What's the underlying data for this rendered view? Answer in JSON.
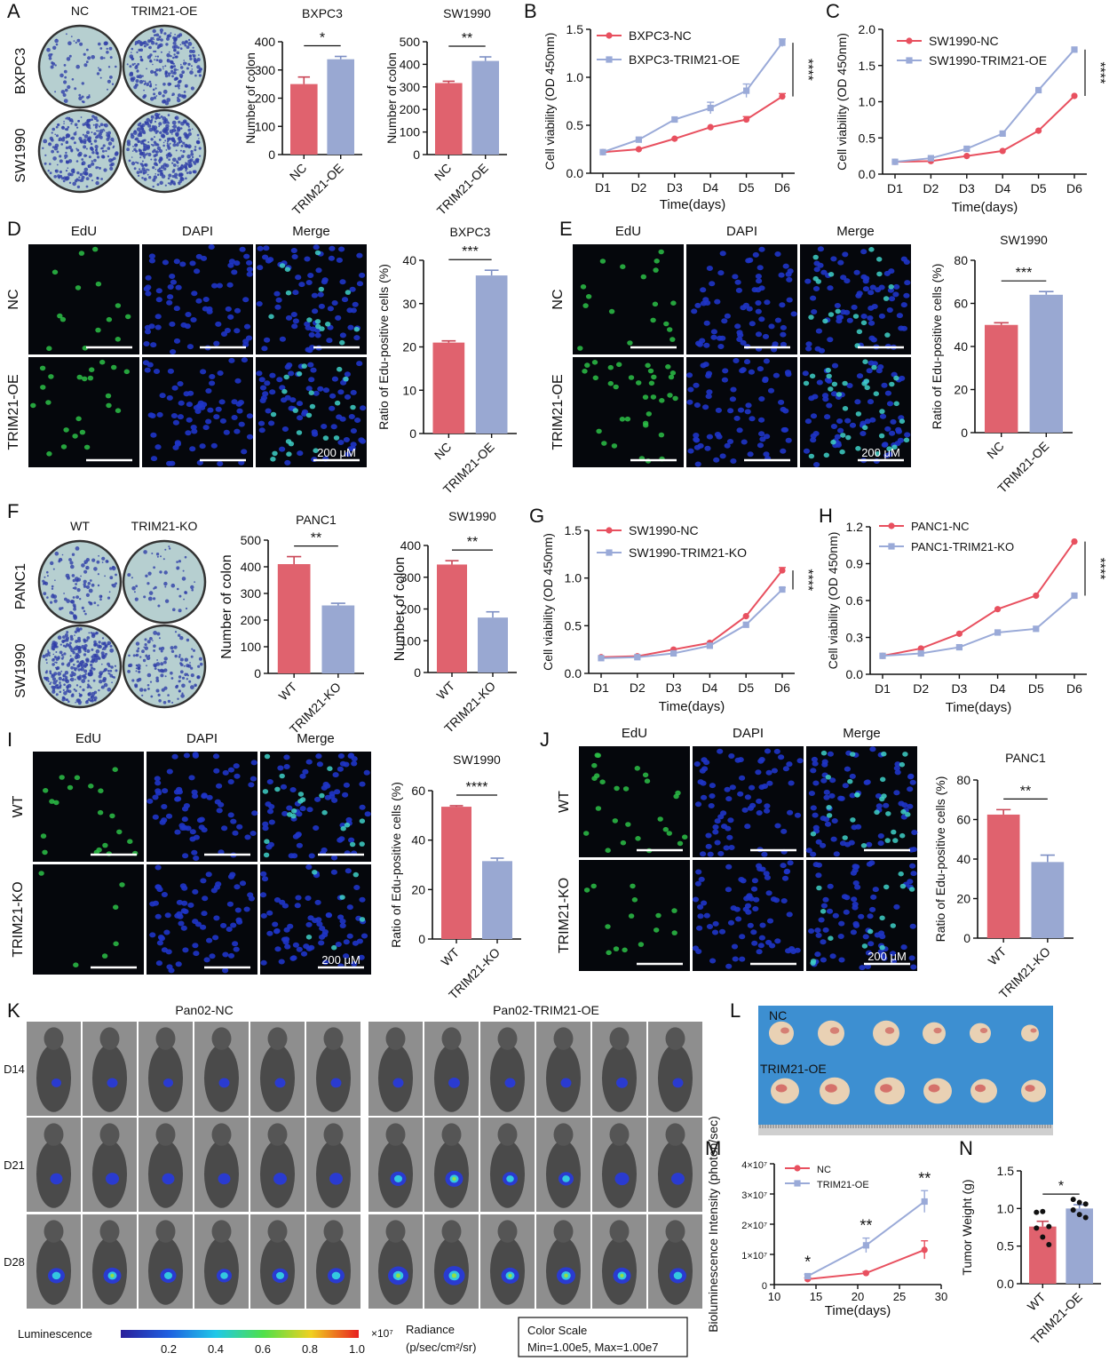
{
  "panel_letters": {
    "A": "A",
    "B": "B",
    "C": "C",
    "D": "D",
    "E": "E",
    "F": "F",
    "G": "G",
    "H": "H",
    "I": "I",
    "J": "J",
    "K": "K",
    "L": "L",
    "M": "M",
    "N": "N"
  },
  "colors": {
    "red": "#e0626e",
    "blue": "#99a8d2",
    "red_line": "#e8505f",
    "blue_line": "#9aaad8",
    "dish_fill": "#b6cfd0",
    "dish_dots": "#2f3fa8",
    "fluor_bg": "#05070c",
    "edu": "#2dbf48",
    "dapi": "#1f35c8",
    "mouse_bg": "#8e8e8e",
    "tray": "#3d8fd1",
    "tumor": "#e9d1b4"
  },
  "colony_A": {
    "col_labels": [
      "NC",
      "TRIM21-OE"
    ],
    "row_labels": [
      "BXPC3",
      "SW1990"
    ]
  },
  "colony_F": {
    "col_labels": [
      "WT",
      "TRIM21-KO"
    ],
    "row_labels": [
      "PANC1",
      "SW1990"
    ]
  },
  "fluor_D": {
    "col_labels": [
      "EdU",
      "DAPI",
      "Merge"
    ],
    "row_labels": [
      "NC",
      "TRIM21-OE"
    ],
    "scale": "200 μM"
  },
  "fluor_E": {
    "col_labels": [
      "EdU",
      "DAPI",
      "Merge"
    ],
    "row_labels": [
      "NC",
      "TRIM21-OE"
    ],
    "scale": "200 μM"
  },
  "fluor_I": {
    "col_labels": [
      "EdU",
      "DAPI",
      "Merge"
    ],
    "row_labels": [
      "WT",
      "TRIM21-KO"
    ],
    "scale": "200 μM"
  },
  "fluor_J": {
    "col_labels": [
      "EdU",
      "DAPI",
      "Merge"
    ],
    "row_labels": [
      "WT",
      "TRIM21-KO"
    ],
    "scale": "200 μM"
  },
  "imaging_K": {
    "group_labels": [
      "Pan02-NC",
      "Pan02-TRIM21-OE"
    ],
    "row_labels": [
      "D14",
      "D21",
      "D28"
    ],
    "lum_label": "Luminescence",
    "lum_ticks": [
      "0.2",
      "0.4",
      "0.6",
      "0.8",
      "1.0"
    ],
    "lum_exp": "×10⁷",
    "radiance_1": "Radiance",
    "radiance_2": "(p/sec/cm²/sr)",
    "cs_1": "Color Scale",
    "cs_2": "Min=1.00e5, Max=1.00e7"
  },
  "photo_L": {
    "label_nc": "NC",
    "label_oe": "TRIM21-OE"
  },
  "chart_data": [
    {
      "id": "A1",
      "type": "bar",
      "title": "BXPC3",
      "ylabel": "Number of colon",
      "categories": [
        "NC",
        "TRIM21-OE"
      ],
      "values": [
        250,
        338
      ],
      "errors": [
        25,
        10
      ],
      "ylim": [
        0,
        400
      ],
      "yticks": [
        "0",
        "100",
        "200",
        "300",
        "400"
      ],
      "sig": "*"
    },
    {
      "id": "A2",
      "type": "bar",
      "title": "SW1990",
      "ylabel": "Number of colon",
      "categories": [
        "NC",
        "TRIM21-OE"
      ],
      "values": [
        317,
        415
      ],
      "errors": [
        8,
        18
      ],
      "ylim": [
        0,
        500
      ],
      "yticks": [
        "0",
        "100",
        "200",
        "300",
        "400",
        "500"
      ],
      "sig": "**"
    },
    {
      "id": "B",
      "type": "line",
      "title": "",
      "xlabel": "Time(days)",
      "ylabel": "Cell viability (OD 450nm)",
      "x": [
        "D1",
        "D2",
        "D3",
        "D4",
        "D5",
        "D6"
      ],
      "ylim": [
        0,
        1.5
      ],
      "yticks": [
        "0.0",
        "0.5",
        "1.0",
        "1.5"
      ],
      "series": [
        {
          "name": "BXPC3-NC",
          "values": [
            0.22,
            0.25,
            0.36,
            0.48,
            0.56,
            0.8
          ],
          "errors": [
            0,
            0,
            0,
            0,
            0.03,
            0.03
          ]
        },
        {
          "name": "BXPC3-TRIM21-OE",
          "values": [
            0.22,
            0.35,
            0.56,
            0.68,
            0.86,
            1.36
          ],
          "errors": [
            0,
            0,
            0,
            0.06,
            0.07,
            0.04
          ]
        }
      ],
      "sig": "****",
      "legend": "top-left"
    },
    {
      "id": "C",
      "type": "line",
      "title": "",
      "xlabel": "Time(days)",
      "ylabel": "Cell viability (OD 450nm)",
      "x": [
        "D1",
        "D2",
        "D3",
        "D4",
        "D5",
        "D6"
      ],
      "ylim": [
        0,
        2.0
      ],
      "yticks": [
        "0.0",
        "0.5",
        "1.0",
        "1.5",
        "2.0"
      ],
      "series": [
        {
          "name": "SW1990-NC",
          "values": [
            0.17,
            0.18,
            0.25,
            0.32,
            0.6,
            1.08
          ],
          "errors": [
            0,
            0,
            0,
            0,
            0,
            0
          ]
        },
        {
          "name": "SW1990-TRIM21-OE",
          "values": [
            0.17,
            0.22,
            0.35,
            0.56,
            1.16,
            1.72
          ],
          "errors": [
            0,
            0,
            0,
            0,
            0,
            0
          ]
        }
      ],
      "sig": "****",
      "legend": "top-left"
    },
    {
      "id": "D",
      "type": "bar",
      "title": "BXPC3",
      "ylabel": "Ratio of Edu-positive cells (%)",
      "categories": [
        "NC",
        "TRIM21-OE"
      ],
      "values": [
        21,
        36.5
      ],
      "errors": [
        0.4,
        1.2
      ],
      "ylim": [
        0,
        40
      ],
      "yticks": [
        "0",
        "10",
        "20",
        "30",
        "40"
      ],
      "sig": "***"
    },
    {
      "id": "E",
      "type": "bar",
      "title": "SW1990",
      "ylabel": "Ratio of Edu-positive cells (%)",
      "categories": [
        "NC",
        "TRIM21-OE"
      ],
      "values": [
        50,
        64
      ],
      "errors": [
        1,
        1.5
      ],
      "ylim": [
        0,
        80
      ],
      "yticks": [
        "0",
        "20",
        "40",
        "60",
        "80"
      ],
      "sig": "***"
    },
    {
      "id": "F1",
      "type": "bar",
      "title": "PANC1",
      "ylabel": "Number of colon",
      "categories": [
        "WT",
        "TRIM21-KO"
      ],
      "values": [
        410,
        255
      ],
      "errors": [
        28,
        8
      ],
      "ylim": [
        0,
        500
      ],
      "yticks": [
        "0",
        "100",
        "200",
        "300",
        "400",
        "500"
      ],
      "sig": "**"
    },
    {
      "id": "F2",
      "type": "bar",
      "title": "SW1990",
      "ylabel": "Number of colon",
      "categories": [
        "WT",
        "TRIM21-KO"
      ],
      "values": [
        340,
        173
      ],
      "errors": [
        12,
        18
      ],
      "ylim": [
        0,
        400
      ],
      "yticks": [
        "0",
        "100",
        "200",
        "300",
        "400"
      ],
      "sig": "**"
    },
    {
      "id": "G",
      "type": "line",
      "title": "",
      "xlabel": "Time(days)",
      "ylabel": "Cell viability (OD 450nm)",
      "x": [
        "D1",
        "D2",
        "D3",
        "D4",
        "D5",
        "D6"
      ],
      "ylim": [
        0,
        1.5
      ],
      "yticks": [
        "0.0",
        "0.5",
        "1.0",
        "1.5"
      ],
      "series": [
        {
          "name": "SW1990-NC",
          "values": [
            0.17,
            0.18,
            0.25,
            0.32,
            0.6,
            1.08
          ],
          "errors": [
            0,
            0,
            0,
            0,
            0,
            0.03
          ]
        },
        {
          "name": "SW1990-TRIM21-KO",
          "values": [
            0.16,
            0.17,
            0.21,
            0.29,
            0.51,
            0.88
          ],
          "errors": [
            0,
            0,
            0,
            0,
            0,
            0.02
          ]
        }
      ],
      "sig": "****",
      "legend": "top-left"
    },
    {
      "id": "H",
      "type": "line",
      "title": "",
      "xlabel": "Time(days)",
      "ylabel": "Cell viability (OD 450nm)",
      "x": [
        "D1",
        "D2",
        "D3",
        "D4",
        "D5",
        "D6"
      ],
      "ylim": [
        0,
        1.2
      ],
      "yticks": [
        "0.0",
        "0.3",
        "0.6",
        "0.9",
        "1.2"
      ],
      "series": [
        {
          "name": "PANC1-NC",
          "values": [
            0.15,
            0.21,
            0.33,
            0.53,
            0.64,
            1.08
          ],
          "errors": [
            0,
            0,
            0,
            0,
            0,
            0
          ]
        },
        {
          "name": "PANC1-TRIM21-KO",
          "values": [
            0.15,
            0.17,
            0.22,
            0.34,
            0.37,
            0.64
          ],
          "errors": [
            0,
            0,
            0,
            0,
            0,
            0
          ]
        }
      ],
      "sig": "****",
      "legend": "top-left"
    },
    {
      "id": "I",
      "type": "bar",
      "title": "SW1990",
      "ylabel": "Ratio of Edu-positive cells (%)",
      "categories": [
        "WT",
        "TRIM21-KO"
      ],
      "values": [
        53.5,
        31.5
      ],
      "errors": [
        0.4,
        1.2
      ],
      "ylim": [
        0,
        60
      ],
      "yticks": [
        "0",
        "20",
        "40",
        "60"
      ],
      "sig": "****"
    },
    {
      "id": "J",
      "type": "bar",
      "title": "PANC1",
      "ylabel": "Ratio of Edu-positive cells (%)",
      "categories": [
        "WT",
        "TRIM21-KO"
      ],
      "values": [
        62.5,
        38.5
      ],
      "errors": [
        2.5,
        3.5
      ],
      "ylim": [
        0,
        80
      ],
      "yticks": [
        "0",
        "20",
        "40",
        "60",
        "80"
      ],
      "sig": "**"
    },
    {
      "id": "M",
      "type": "line",
      "title": "",
      "xlabel": "Time(days)",
      "ylabel": "Bioluminescence Intensity (photon/sec)",
      "x": [
        14,
        21,
        28
      ],
      "xlim": [
        10,
        30
      ],
      "xticks": [
        "10",
        "15",
        "20",
        "25",
        "30"
      ],
      "ylim": [
        0,
        40000000
      ],
      "yticks": [
        "0",
        "1×10⁷",
        "2×10⁷",
        "3×10⁷",
        "4×10⁷"
      ],
      "series": [
        {
          "name": "NC",
          "values": [
            1800000,
            3800000,
            11500000
          ],
          "errors": [
            400000,
            500000,
            3000000
          ]
        },
        {
          "name": "TRIM21-OE",
          "values": [
            2800000,
            13000000,
            27500000
          ],
          "errors": [
            600000,
            2400000,
            3600000
          ]
        }
      ],
      "sig": [
        "*",
        "**",
        "**"
      ],
      "legend": "top-left"
    },
    {
      "id": "N",
      "type": "bar",
      "title": "",
      "ylabel": "Tumor Weight (g)",
      "categories": [
        "WT",
        "TRIM21-OE"
      ],
      "values": [
        0.76,
        1.0
      ],
      "errors": [
        0.07,
        0.05
      ],
      "ylim": [
        0,
        1.5
      ],
      "yticks": [
        "0.0",
        "0.5",
        "1.0",
        "1.5"
      ],
      "sig": "*",
      "points": [
        [
          0.95,
          0.96,
          0.76,
          0.74,
          0.62,
          0.52
        ],
        [
          1.12,
          1.08,
          1.06,
          0.98,
          0.92,
          0.88
        ]
      ]
    }
  ]
}
